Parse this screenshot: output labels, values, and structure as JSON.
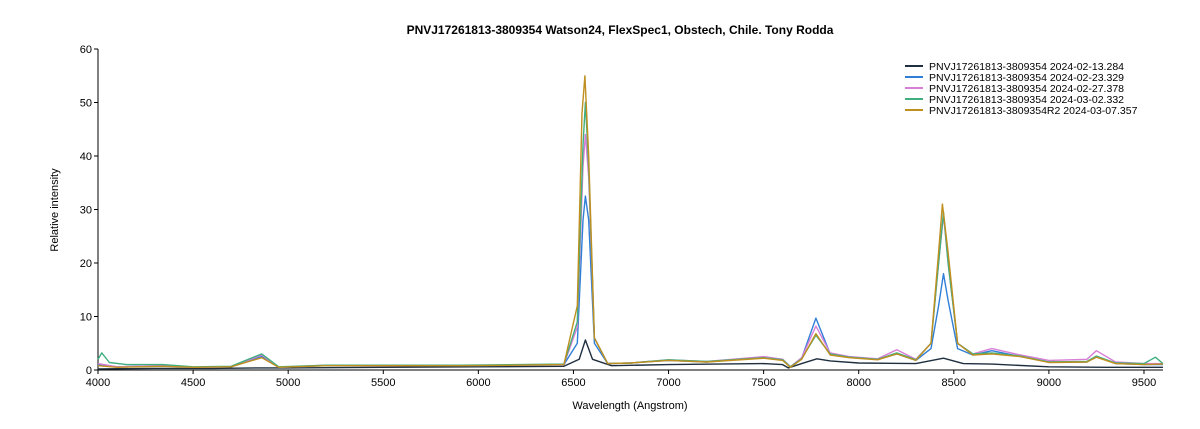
{
  "chart_data": {
    "type": "line",
    "title": "PNVJ17261813-3809354  Watson24, FlexSpec1, Obstech, Chile.  Tony Rodda",
    "xlabel": "Wavelength (Angstrom)",
    "ylabel": "Relative intensity",
    "xlim": [
      4000,
      9600
    ],
    "ylim": [
      0,
      60
    ],
    "xticks": [
      4000,
      4500,
      5000,
      5500,
      6000,
      6500,
      7000,
      7500,
      8000,
      8500,
      9000,
      9500
    ],
    "yticks": [
      0,
      10,
      20,
      30,
      40,
      50,
      60
    ],
    "grid": false,
    "legend_position": "top-right",
    "series": [
      {
        "name": "PNVJ17261813-3809354  2024-02-13.284",
        "color": "#1f2f3f",
        "x": [
          4000,
          4300,
          4600,
          4860,
          5000,
          5500,
          6000,
          6450,
          6530,
          6563,
          6600,
          6700,
          7000,
          7500,
          7600,
          7630,
          7700,
          7780,
          7850,
          8000,
          8300,
          8446,
          8550,
          8700,
          9000,
          9300,
          9500,
          9600
        ],
        "values": [
          0.2,
          0.3,
          0.3,
          0.4,
          0.4,
          0.5,
          0.6,
          0.7,
          2.0,
          5.6,
          2.0,
          0.8,
          1.0,
          1.2,
          1.0,
          0.4,
          1.2,
          2.1,
          1.7,
          1.3,
          1.2,
          2.2,
          1.2,
          1.1,
          0.6,
          0.5,
          0.5,
          0.5
        ]
      },
      {
        "name": "PNVJ17261813-3809354  2024-02-23.329",
        "color": "#2f7fd7",
        "x": [
          4000,
          4100,
          4340,
          4500,
          4700,
          4861,
          4950,
          5200,
          5500,
          5900,
          6200,
          6450,
          6520,
          6550,
          6563,
          6580,
          6610,
          6680,
          6800,
          7000,
          7200,
          7500,
          7600,
          7640,
          7700,
          7775,
          7850,
          7950,
          8100,
          8200,
          8300,
          8380,
          8420,
          8446,
          8470,
          8520,
          8600,
          8700,
          8850,
          9000,
          9200,
          9250,
          9350,
          9500,
          9600
        ],
        "values": [
          1.0,
          0.6,
          0.8,
          0.5,
          0.6,
          2.5,
          0.5,
          0.8,
          0.8,
          0.8,
          0.9,
          1.0,
          5.0,
          28.0,
          32.5,
          28.0,
          5.0,
          1.2,
          1.3,
          1.8,
          1.5,
          2.4,
          2.0,
          0.6,
          2.2,
          9.7,
          3.0,
          2.4,
          2.0,
          3.0,
          1.8,
          4.0,
          12.0,
          18.0,
          13.0,
          4.0,
          2.8,
          3.6,
          2.5,
          1.5,
          1.5,
          2.6,
          1.2,
          1.0,
          1.0
        ]
      },
      {
        "name": "PNVJ17261813-3809354  2024-02-27.378",
        "color": "#d77fd7",
        "x": [
          4000,
          4100,
          4340,
          4500,
          4700,
          4861,
          4950,
          5200,
          5500,
          5900,
          6200,
          6450,
          6520,
          6550,
          6563,
          6580,
          6610,
          6680,
          6800,
          7000,
          7200,
          7500,
          7600,
          7640,
          7700,
          7775,
          7850,
          7950,
          8100,
          8200,
          8300,
          8380,
          8420,
          8446,
          8470,
          8520,
          8600,
          8700,
          8850,
          9000,
          9200,
          9250,
          9350,
          9500,
          9600
        ],
        "values": [
          1.2,
          0.6,
          0.8,
          0.5,
          0.6,
          2.8,
          0.5,
          0.9,
          0.8,
          0.9,
          0.9,
          1.0,
          8.0,
          38.0,
          44.0,
          36.0,
          6.0,
          1.2,
          1.3,
          1.9,
          1.6,
          2.5,
          2.0,
          0.6,
          2.3,
          8.2,
          3.2,
          2.5,
          2.1,
          3.8,
          2.0,
          5.0,
          20.0,
          29.0,
          20.0,
          5.0,
          3.0,
          4.0,
          2.8,
          1.8,
          2.0,
          3.6,
          1.5,
          1.2,
          1.2
        ]
      },
      {
        "name": "PNVJ17261813-3809354  2024-03-02.332",
        "color": "#3faf7f",
        "x": [
          4000,
          4020,
          4060,
          4150,
          4340,
          4500,
          4700,
          4861,
          4950,
          5200,
          5500,
          5900,
          6200,
          6450,
          6520,
          6550,
          6563,
          6580,
          6610,
          6680,
          6800,
          7000,
          7200,
          7500,
          7600,
          7640,
          7700,
          7775,
          7850,
          7950,
          8100,
          8200,
          8300,
          8380,
          8420,
          8446,
          8470,
          8520,
          8600,
          8700,
          8850,
          9000,
          9200,
          9250,
          9350,
          9500,
          9560,
          9600
        ],
        "values": [
          2.0,
          3.2,
          1.4,
          1.0,
          1.0,
          0.6,
          0.7,
          3.0,
          0.6,
          0.9,
          0.9,
          0.9,
          1.0,
          1.1,
          9.0,
          42.0,
          50.0,
          38.0,
          6.0,
          1.2,
          1.3,
          1.9,
          1.6,
          2.3,
          1.9,
          0.6,
          2.1,
          6.5,
          3.0,
          2.4,
          2.0,
          3.2,
          1.9,
          5.0,
          20.0,
          29.5,
          20.0,
          5.0,
          3.0,
          3.2,
          2.6,
          1.5,
          1.6,
          2.6,
          1.3,
          1.2,
          2.4,
          1.2
        ]
      },
      {
        "name": "PNVJ17261813-3809354R2  2024-03-07.357",
        "color": "#bf8f1f",
        "x": [
          4000,
          4100,
          4340,
          4500,
          4700,
          4861,
          4950,
          5200,
          5500,
          5900,
          6200,
          6450,
          6520,
          6545,
          6560,
          6580,
          6610,
          6680,
          6800,
          7000,
          7200,
          7500,
          7600,
          7640,
          7700,
          7775,
          7850,
          7950,
          8100,
          8200,
          8300,
          8380,
          8420,
          8440,
          8470,
          8520,
          8600,
          8700,
          8850,
          9000,
          9200,
          9250,
          9350,
          9500,
          9600
        ],
        "values": [
          0.8,
          0.5,
          0.7,
          0.5,
          0.6,
          2.3,
          0.5,
          0.8,
          0.8,
          0.8,
          0.9,
          1.0,
          12.0,
          48.0,
          55.0,
          40.0,
          6.0,
          1.2,
          1.3,
          1.8,
          1.5,
          2.2,
          1.8,
          0.5,
          2.0,
          6.8,
          2.8,
          2.3,
          1.9,
          3.0,
          1.8,
          5.0,
          22.0,
          31.0,
          22.0,
          5.0,
          2.8,
          3.0,
          2.5,
          1.4,
          1.5,
          2.4,
          1.2,
          1.0,
          1.1
        ]
      }
    ]
  }
}
